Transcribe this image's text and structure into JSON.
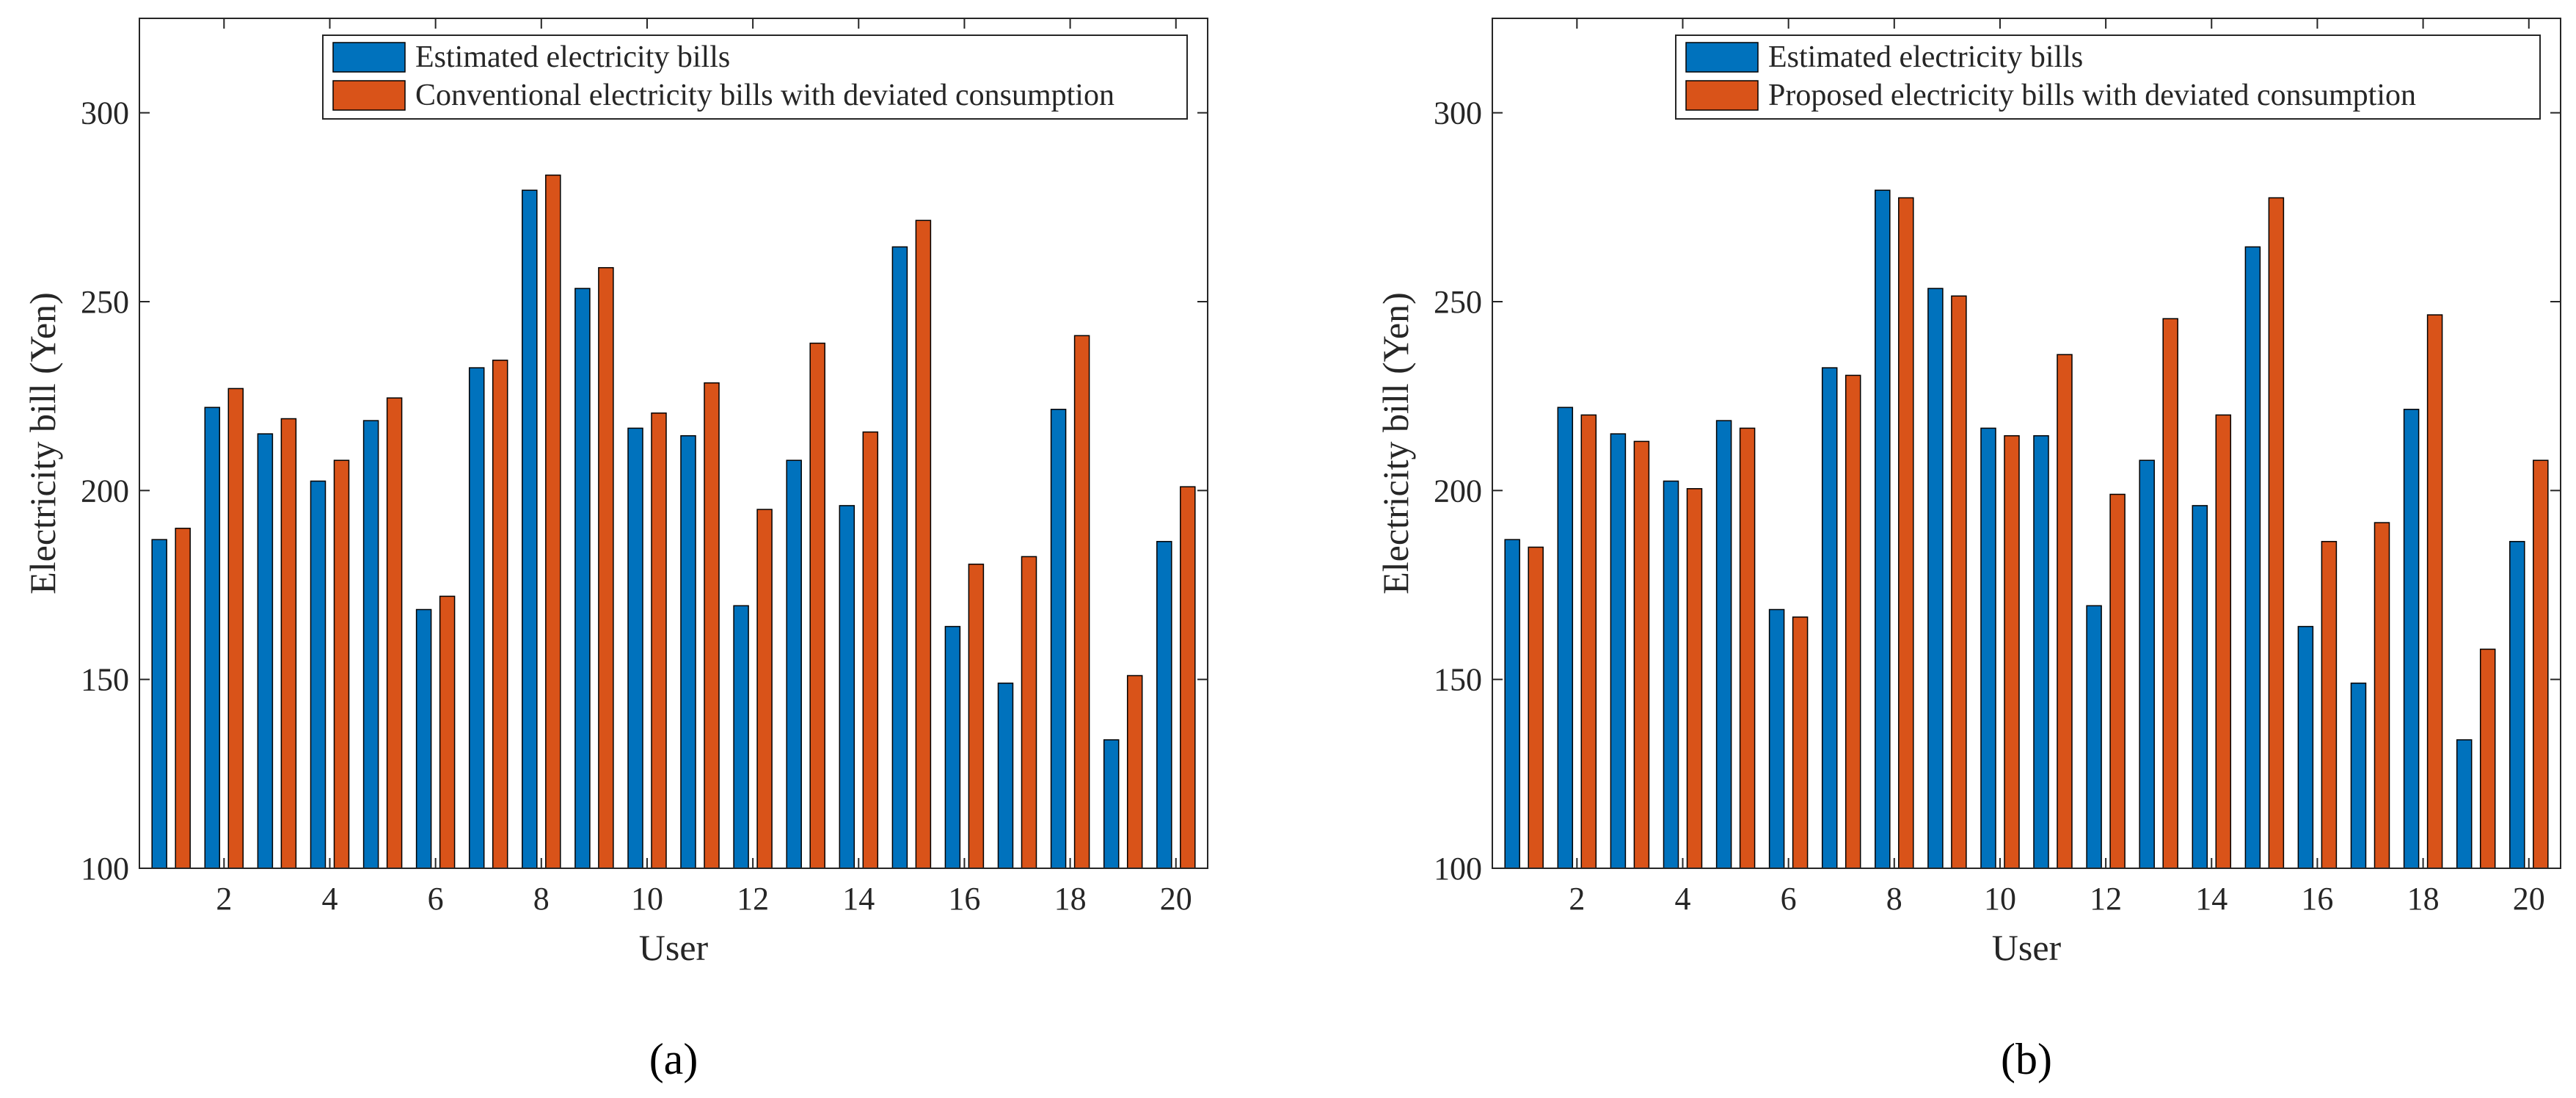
{
  "colors": {
    "estimated": "#0072BD",
    "deviated": "#D95319",
    "axis": "#262626",
    "bar_edge": "#000000"
  },
  "chart_data": [
    {
      "type": "bar",
      "panel_label": "(a)",
      "title": "",
      "xlabel": "User",
      "ylabel": "Electricity bill (Yen)",
      "ylim": [
        100,
        325
      ],
      "yticks": [
        100,
        150,
        200,
        250,
        300
      ],
      "xlim": [
        0.4,
        20.6
      ],
      "xticks": [
        2,
        4,
        6,
        8,
        10,
        12,
        14,
        16,
        18,
        20
      ],
      "grid": false,
      "legend_position": "top-right",
      "categories": [
        1,
        2,
        3,
        4,
        5,
        6,
        7,
        8,
        9,
        10,
        11,
        12,
        13,
        14,
        15,
        16,
        17,
        18,
        19,
        20
      ],
      "series": [
        {
          "name": "Estimated electricity bills",
          "color_key": "estimated",
          "values": [
            187,
            222,
            215,
            202.5,
            218.5,
            168.5,
            232.5,
            279.5,
            253.5,
            216.5,
            214.5,
            169.5,
            208,
            196,
            264.5,
            164,
            149,
            221.5,
            134,
            186.5
          ]
        },
        {
          "name": "Conventional electricity bills with deviated consumption",
          "color_key": "deviated",
          "values": [
            190,
            227,
            219,
            208,
            224.5,
            172,
            234.5,
            283.5,
            259,
            220.5,
            228.5,
            195,
            239,
            215.5,
            271.5,
            180.5,
            182.5,
            241,
            151,
            201
          ]
        }
      ]
    },
    {
      "type": "bar",
      "panel_label": "(b)",
      "title": "",
      "xlabel": "User",
      "ylabel": "Electricity bill (Yen)",
      "ylim": [
        100,
        325
      ],
      "yticks": [
        100,
        150,
        200,
        250,
        300
      ],
      "xlim": [
        0.4,
        20.6
      ],
      "xticks": [
        2,
        4,
        6,
        8,
        10,
        12,
        14,
        16,
        18,
        20
      ],
      "grid": false,
      "legend_position": "top-right",
      "categories": [
        1,
        2,
        3,
        4,
        5,
        6,
        7,
        8,
        9,
        10,
        11,
        12,
        13,
        14,
        15,
        16,
        17,
        18,
        19,
        20
      ],
      "series": [
        {
          "name": "Estimated electricity bills",
          "color_key": "estimated",
          "values": [
            187,
            222,
            215,
            202.5,
            218.5,
            168.5,
            232.5,
            279.5,
            253.5,
            216.5,
            214.5,
            169.5,
            208,
            196,
            264.5,
            164,
            149,
            221.5,
            134,
            186.5
          ]
        },
        {
          "name": "Proposed electricity bills with deviated consumption",
          "color_key": "deviated",
          "values": [
            185,
            220,
            213,
            200.5,
            216.5,
            166.5,
            230.5,
            277.5,
            251.5,
            214.5,
            236,
            199,
            245.5,
            220,
            277.5,
            186.5,
            191.5,
            246.5,
            158,
            208
          ]
        }
      ]
    }
  ]
}
